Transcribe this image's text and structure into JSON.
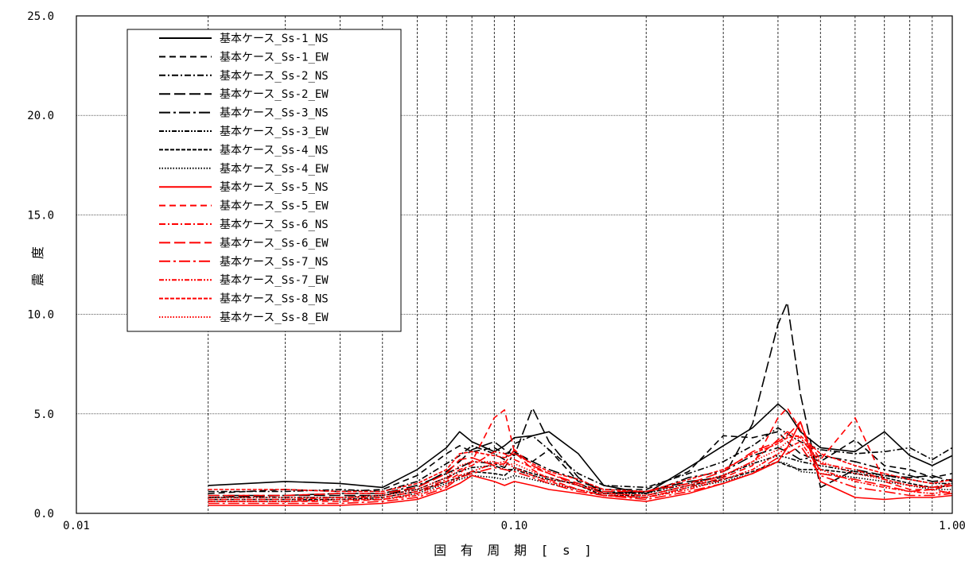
{
  "chart_data": {
    "type": "line",
    "title": "",
    "xlabel": "固 有 周 期 [ s ]",
    "ylabel": "震 度",
    "xscale": "log",
    "xlim": [
      0.01,
      1.0
    ],
    "ylim": [
      0,
      25
    ],
    "x_ticks": [
      0.01,
      0.1,
      1.0
    ],
    "x_tick_labels": [
      "0.01",
      "0.10",
      "1.00"
    ],
    "y_ticks": [
      0,
      5,
      10,
      15,
      20,
      25
    ],
    "y_tick_labels": [
      "0.0",
      "5.0",
      "10.0",
      "15.0",
      "20.0",
      "25.0"
    ],
    "grid": true,
    "legend_position": "top-left",
    "colors": {
      "black": "#000000",
      "red": "#ff0000"
    },
    "x": [
      0.02,
      0.03,
      0.04,
      0.05,
      0.06,
      0.07,
      0.075,
      0.08,
      0.09,
      0.095,
      0.1,
      0.11,
      0.12,
      0.14,
      0.16,
      0.2,
      0.25,
      0.3,
      0.35,
      0.4,
      0.42,
      0.45,
      0.5,
      0.6,
      0.7,
      0.8,
      0.9,
      1.0
    ],
    "series": [
      {
        "name": "基本ケース_Ss-1_NS",
        "color": "#000000",
        "dash": "solid",
        "values": [
          1.4,
          1.6,
          1.5,
          1.3,
          2.2,
          3.3,
          4.1,
          3.6,
          3.1,
          3.4,
          3.8,
          3.9,
          4.1,
          3.0,
          1.4,
          1.0,
          2.3,
          3.4,
          4.3,
          5.5,
          5.1,
          4.1,
          3.3,
          3.1,
          4.1,
          2.9,
          2.4,
          2.9
        ]
      },
      {
        "name": "基本ケース_Ss-1_EW",
        "color": "#000000",
        "dash": "8,5",
        "values": [
          1.0,
          1.2,
          1.1,
          1.2,
          1.9,
          3.0,
          3.4,
          3.1,
          3.3,
          3.0,
          3.1,
          2.6,
          3.2,
          1.6,
          1.2,
          1.2,
          2.1,
          3.9,
          3.8,
          4.1,
          3.6,
          3.0,
          2.6,
          3.7,
          2.4,
          2.2,
          1.8,
          2.0
        ]
      },
      {
        "name": "基本ケース_Ss-2_NS",
        "color": "#000000",
        "dash": "8,3,2,3",
        "values": [
          1.1,
          1.1,
          1.2,
          1.1,
          1.6,
          2.5,
          2.9,
          3.4,
          3.0,
          2.7,
          3.5,
          3.9,
          3.2,
          2.0,
          1.4,
          1.3,
          2.0,
          2.6,
          3.4,
          4.3,
          4.0,
          3.6,
          3.2,
          3.0,
          3.1,
          3.3,
          2.7,
          3.3
        ]
      },
      {
        "name": "基本ケース_Ss-2_EW",
        "color": "#000000",
        "dash": "14,5",
        "values": [
          0.8,
          0.9,
          0.9,
          0.9,
          1.3,
          2.1,
          2.6,
          3.2,
          3.6,
          3.2,
          2.9,
          5.3,
          3.6,
          1.8,
          1.0,
          1.1,
          1.6,
          1.8,
          4.5,
          9.5,
          10.6,
          6.0,
          1.3,
          2.2,
          1.9,
          1.8,
          1.9,
          1.6
        ]
      },
      {
        "name": "基本ケース_Ss-3_NS",
        "color": "#000000",
        "dash": "14,4,3,4",
        "values": [
          0.9,
          0.9,
          1.0,
          1.0,
          1.4,
          2.0,
          2.3,
          2.6,
          2.5,
          2.3,
          3.0,
          2.6,
          2.2,
          1.7,
          1.1,
          1.0,
          1.8,
          2.1,
          2.9,
          3.3,
          3.1,
          2.7,
          2.9,
          2.6,
          2.2,
          1.9,
          1.6,
          1.7
        ]
      },
      {
        "name": "基本ケース_Ss-3_EW",
        "color": "#000000",
        "dash": "6,2,2,2,2,2",
        "values": [
          0.8,
          0.8,
          0.8,
          0.9,
          1.2,
          1.8,
          2.1,
          2.3,
          2.4,
          2.2,
          2.2,
          1.9,
          1.7,
          1.5,
          1.0,
          1.0,
          1.5,
          1.9,
          2.5,
          2.9,
          2.8,
          2.6,
          2.4,
          2.1,
          1.9,
          1.7,
          1.5,
          1.5
        ]
      },
      {
        "name": "基本ケース_Ss-4_NS",
        "color": "#000000",
        "dash": "5,2",
        "values": [
          0.7,
          0.7,
          0.7,
          0.8,
          1.1,
          1.6,
          1.8,
          2.1,
          2.0,
          1.9,
          2.3,
          2.0,
          1.8,
          1.4,
          0.9,
          0.9,
          1.4,
          1.7,
          2.1,
          2.6,
          2.4,
          2.2,
          2.2,
          2.0,
          1.8,
          1.5,
          1.3,
          1.4
        ]
      },
      {
        "name": "基本ケース_Ss-4_EW",
        "color": "#000000",
        "dash": "1.5,2",
        "values": [
          0.6,
          0.6,
          0.7,
          0.7,
          1.0,
          1.5,
          1.7,
          1.9,
          1.8,
          1.7,
          1.9,
          1.7,
          1.5,
          1.2,
          0.9,
          0.8,
          1.3,
          1.6,
          2.0,
          2.6,
          2.5,
          2.1,
          2.0,
          1.8,
          1.6,
          1.4,
          1.2,
          1.2
        ]
      },
      {
        "name": "基本ケース_Ss-5_NS",
        "color": "#ff0000",
        "dash": "solid",
        "values": [
          0.4,
          0.4,
          0.4,
          0.5,
          0.7,
          1.2,
          1.5,
          1.9,
          1.6,
          1.4,
          1.6,
          1.4,
          1.2,
          1.0,
          0.8,
          0.6,
          1.0,
          1.5,
          2.0,
          2.6,
          3.3,
          4.6,
          1.6,
          0.8,
          0.7,
          0.8,
          0.8,
          0.9
        ]
      },
      {
        "name": "基本ケース_Ss-5_EW",
        "color": "#ff0000",
        "dash": "8,5",
        "values": [
          0.6,
          0.6,
          0.6,
          0.7,
          1.0,
          1.6,
          2.0,
          2.6,
          4.8,
          5.2,
          3.1,
          2.2,
          1.7,
          1.2,
          0.9,
          0.8,
          1.3,
          1.8,
          2.4,
          4.8,
          5.3,
          4.2,
          2.7,
          4.8,
          1.6,
          1.2,
          1.2,
          1.4
        ]
      },
      {
        "name": "基本ケース_Ss-6_NS",
        "color": "#ff0000",
        "dash": "8,3,2,3",
        "values": [
          0.7,
          0.7,
          0.8,
          0.8,
          1.1,
          1.7,
          2.2,
          2.4,
          3.1,
          3.0,
          2.7,
          2.3,
          2.0,
          1.4,
          1.0,
          0.9,
          1.4,
          1.9,
          2.6,
          3.7,
          4.1,
          3.8,
          2.5,
          2.2,
          1.7,
          1.4,
          1.3,
          1.5
        ]
      },
      {
        "name": "基本ケース_Ss-6_EW",
        "color": "#ff0000",
        "dash": "14,5",
        "values": [
          0.9,
          0.9,
          1.0,
          1.0,
          1.3,
          2.0,
          2.7,
          2.8,
          2.4,
          2.5,
          3.2,
          2.4,
          2.0,
          1.5,
          1.1,
          1.1,
          1.5,
          2.1,
          3.1,
          3.6,
          3.9,
          4.6,
          2.0,
          1.7,
          1.4,
          1.1,
          1.2,
          1.0
        ]
      },
      {
        "name": "基本ケース_Ss-7_NS",
        "color": "#ff0000",
        "dash": "14,4,3,4",
        "values": [
          0.5,
          0.5,
          0.5,
          0.6,
          0.8,
          1.3,
          1.8,
          2.0,
          2.3,
          2.2,
          2.1,
          1.8,
          1.5,
          1.1,
          0.9,
          0.7,
          1.1,
          1.5,
          2.0,
          2.8,
          3.0,
          3.4,
          1.9,
          1.3,
          1.1,
          0.9,
          0.9,
          1.0
        ]
      },
      {
        "name": "基本ケース_Ss-7_EW",
        "color": "#ff0000",
        "dash": "6,2,2,2,2,2",
        "values": [
          0.6,
          0.6,
          0.7,
          0.7,
          0.9,
          1.4,
          1.9,
          2.1,
          2.5,
          2.6,
          2.3,
          1.9,
          1.6,
          1.2,
          0.9,
          0.8,
          1.2,
          1.7,
          2.2,
          3.0,
          3.3,
          3.6,
          2.2,
          1.6,
          1.3,
          1.1,
          1.0,
          1.1
        ]
      },
      {
        "name": "基本ケース_Ss-8_NS",
        "color": "#ff0000",
        "dash": "5,2",
        "values": [
          1.2,
          1.2,
          1.1,
          1.1,
          1.5,
          2.2,
          3.0,
          3.1,
          2.9,
          2.8,
          3.0,
          2.5,
          2.1,
          1.7,
          1.2,
          1.1,
          1.7,
          2.2,
          3.0,
          3.5,
          3.8,
          3.9,
          3.0,
          2.4,
          2.0,
          1.7,
          1.5,
          1.7
        ]
      },
      {
        "name": "基本ケース_Ss-8_EW",
        "color": "#ff0000",
        "dash": "1.5,2",
        "values": [
          0.8,
          0.8,
          0.8,
          0.9,
          1.2,
          1.8,
          2.4,
          2.6,
          2.6,
          2.4,
          2.5,
          2.1,
          1.8,
          1.4,
          1.0,
          0.9,
          1.4,
          1.9,
          2.6,
          3.2,
          3.6,
          3.8,
          2.6,
          2.0,
          1.7,
          1.4,
          1.3,
          1.4
        ]
      }
    ]
  }
}
